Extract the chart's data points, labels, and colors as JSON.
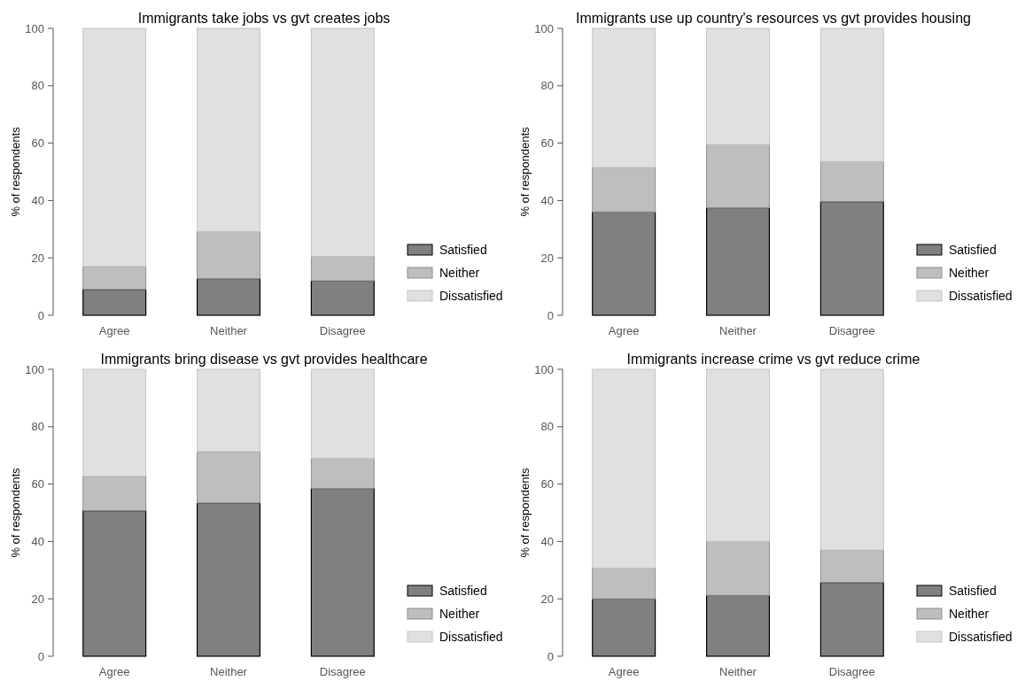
{
  "chart_data": [
    {
      "type": "bar",
      "stacked": true,
      "title": "Immigrants take jobs vs gvt creates jobs",
      "ylabel": "% of respondents",
      "categories": [
        "Agree",
        "Neither",
        "Disagree"
      ],
      "ylim": [
        0,
        100
      ],
      "yticks": [
        0,
        20,
        40,
        60,
        80,
        100
      ],
      "legend": "bottom right",
      "series": [
        {
          "name": "Satisfied",
          "color": "#808080",
          "values": [
            9,
            12.8,
            12
          ]
        },
        {
          "name": "Neither",
          "color": "#bebebe",
          "values": [
            8,
            16.4,
            8.5
          ]
        },
        {
          "name": "Dissatisfied",
          "color": "#e0e0e0",
          "values": [
            83,
            70.8,
            79.5
          ]
        }
      ]
    },
    {
      "type": "bar",
      "stacked": true,
      "title": "Immigrants use up country's resources vs gvt provides housing",
      "ylabel": "% of respondents",
      "categories": [
        "Agree",
        "Neither",
        "Disagree"
      ],
      "ylim": [
        0,
        100
      ],
      "yticks": [
        0,
        20,
        40,
        60,
        80,
        100
      ],
      "legend": "bottom right",
      "series": [
        {
          "name": "Satisfied",
          "color": "#808080",
          "values": [
            36,
            37.5,
            39.6
          ]
        },
        {
          "name": "Neither",
          "color": "#bebebe",
          "values": [
            15.5,
            22,
            14
          ]
        },
        {
          "name": "Dissatisfied",
          "color": "#e0e0e0",
          "values": [
            48.5,
            40.5,
            46.4
          ]
        }
      ]
    },
    {
      "type": "bar",
      "stacked": true,
      "title": "Immigrants bring disease vs gvt provides healthcare",
      "ylabel": "% of respondents",
      "categories": [
        "Agree",
        "Neither",
        "Disagree"
      ],
      "ylim": [
        0,
        100
      ],
      "yticks": [
        0,
        20,
        40,
        60,
        80,
        100
      ],
      "legend": "bottom right",
      "series": [
        {
          "name": "Satisfied",
          "color": "#808080",
          "values": [
            50.7,
            53.4,
            58.5
          ]
        },
        {
          "name": "Neither",
          "color": "#bebebe",
          "values": [
            12,
            17.9,
            10.5
          ]
        },
        {
          "name": "Dissatisfied",
          "color": "#e0e0e0",
          "values": [
            37.3,
            28.7,
            31
          ]
        }
      ]
    },
    {
      "type": "bar",
      "stacked": true,
      "title": "Immigrants increase crime vs gvt reduce crime",
      "ylabel": "% of respondents",
      "categories": [
        "Agree",
        "Neither",
        "Disagree"
      ],
      "ylim": [
        0,
        100
      ],
      "yticks": [
        0,
        20,
        40,
        60,
        80,
        100
      ],
      "legend": "bottom right",
      "series": [
        {
          "name": "Satisfied",
          "color": "#808080",
          "values": [
            20,
            21.2,
            25.7
          ]
        },
        {
          "name": "Neither",
          "color": "#bebebe",
          "values": [
            10.7,
            18.8,
            11.3
          ]
        },
        {
          "name": "Dissatisfied",
          "color": "#e0e0e0",
          "values": [
            69.3,
            60,
            63
          ]
        }
      ]
    }
  ]
}
